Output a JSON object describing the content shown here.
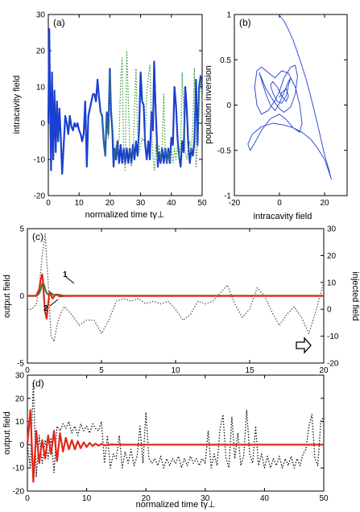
{
  "chart_data": [
    {
      "panel": "(a)",
      "type": "line",
      "xlabel": "normalized time tγ⊥",
      "ylabel": "intracavity field",
      "xlim": [
        0,
        50
      ],
      "ylim": [
        -20,
        30
      ],
      "xticks": [
        0,
        10,
        20,
        30,
        40,
        50
      ],
      "yticks": [
        -20,
        -10,
        0,
        10,
        20,
        30
      ],
      "series": [
        {
          "style": "solid",
          "color": "#1a3fd1",
          "x": [
            0,
            0.3,
            0.6,
            0.9,
            1.2,
            1.6,
            2.0,
            2.4,
            2.8,
            3.2,
            3.6,
            4.0,
            4.5,
            5.0,
            5.5,
            6.0,
            6.5,
            7.0,
            7.5,
            8.0,
            8.5,
            9.0,
            9.5,
            10.0,
            10.5,
            11.0,
            11.5,
            12.0,
            12.5,
            13.0,
            13.5,
            14.0,
            14.5,
            15.0,
            15.5,
            16.0,
            16.5,
            17.0,
            17.5,
            18.0,
            18.5,
            19.0,
            19.5,
            20.0,
            20.4,
            20.8,
            21.2,
            21.6,
            22.0,
            22.5,
            23.0,
            23.5,
            24.0,
            24.5,
            25.0,
            25.5,
            26.0,
            26.5,
            27.0,
            27.5,
            28.0,
            28.5,
            29.0,
            29.5,
            30.0,
            30.5,
            31.0,
            31.5,
            32.0,
            32.5,
            33.0,
            33.5,
            34.0,
            34.4,
            34.8,
            35.2,
            35.6,
            36.0,
            36.5,
            37.0,
            37.5,
            38.0,
            38.5,
            39.0,
            39.5,
            40.0,
            40.5,
            41.0,
            41.5,
            42.0,
            42.5,
            43.0,
            43.5,
            44.0,
            44.5,
            45.0,
            45.5,
            46.0,
            46.5,
            47.0,
            47.5,
            48.0,
            48.5,
            49.0,
            49.5,
            50.0
          ],
          "y": [
            0,
            26,
            5,
            -13,
            14,
            -10,
            9,
            -8,
            6,
            -5,
            4,
            -3,
            -14,
            -6,
            2,
            0,
            -3,
            2,
            -1,
            -2,
            0,
            -1,
            0,
            -2,
            -3,
            -5,
            -3,
            6,
            -12,
            2,
            4,
            6,
            8,
            8,
            6,
            12,
            7,
            3,
            2,
            -5,
            -9,
            3,
            -3,
            15,
            3,
            -2,
            -12,
            -7,
            -10,
            -5,
            -11,
            -6,
            -11,
            -7,
            -11,
            -7,
            -11,
            -7,
            -11,
            -6,
            -10,
            -5,
            -9,
            -2,
            14,
            6,
            5,
            -6,
            -10,
            -5,
            -10,
            3,
            -2,
            17,
            6,
            -3,
            -12,
            -8,
            -11,
            -7,
            -11,
            -7,
            -11,
            -7,
            -11,
            -4,
            -6,
            10,
            5,
            -4,
            -9,
            -12,
            -5,
            -8,
            10,
            4,
            -6,
            -11,
            -7,
            -9,
            -5,
            12,
            -6,
            10,
            13,
            10
          ]
        },
        {
          "style": "dotted",
          "color": "#3d9e3d",
          "x": [
            17.0,
            17.5,
            18.0,
            18.5,
            19.0,
            19.5,
            20.0,
            20.5,
            21.0,
            21.5,
            22.0,
            22.5,
            23.0,
            23.5,
            24.0,
            24.5,
            25.0,
            25.5,
            26.0,
            26.5,
            27.0,
            27.5,
            28.0,
            28.5,
            29.0,
            29.5,
            30.0,
            30.5,
            31.0,
            31.5,
            32.0,
            32.5,
            33.0,
            33.5,
            34.0,
            34.5,
            35.0,
            35.5,
            36.0,
            36.5,
            37.0,
            37.5,
            38.0,
            38.5,
            39.0,
            39.5,
            40.0,
            40.5,
            41.0,
            41.5,
            42.0,
            42.5,
            43.0,
            43.5,
            44.0,
            44.5,
            45.0,
            45.5,
            46.0,
            46.5,
            47.0,
            47.5,
            48.0,
            48.5,
            49.0,
            49.5,
            50.0
          ],
          "y": [
            3,
            1,
            -4,
            -9,
            2,
            -4,
            14,
            4,
            -2,
            -10,
            -6,
            -9,
            -4,
            11,
            18,
            -10,
            -13,
            20,
            7,
            -8,
            -12,
            -9,
            4,
            15,
            -2,
            -8,
            -6,
            -4,
            -5,
            -4,
            8,
            13,
            16,
            0,
            -9,
            -13,
            -6,
            -10,
            -6,
            -10,
            -6,
            8,
            -9,
            -11,
            -8,
            -10,
            -7,
            -11,
            -7,
            -10,
            -6,
            -10,
            -6,
            14,
            4,
            -8,
            -10,
            -7,
            -5,
            -8,
            0,
            15,
            -12,
            -6,
            8,
            12,
            6
          ]
        }
      ]
    },
    {
      "panel": "(b)",
      "type": "line",
      "xlabel": "intracavity  field",
      "ylabel": "population inversion",
      "xlim": [
        -20,
        30
      ],
      "ylim": [
        -1,
        1
      ],
      "xticks": [
        -20,
        0,
        20
      ],
      "yticks": [
        -1,
        -0.5,
        0,
        0.5,
        1
      ],
      "series": [
        {
          "style": "solid",
          "color": "#1a3fd1",
          "x": [
            0,
            2,
            4,
            6,
            8,
            10,
            12,
            14,
            16,
            18,
            20,
            22,
            23,
            22,
            20,
            17,
            14,
            10,
            6,
            2,
            -3,
            -8,
            -12,
            -14,
            -13,
            -11,
            -8,
            -4,
            0,
            3,
            6,
            9,
            10,
            9,
            7,
            4,
            1,
            -2,
            -5,
            -8,
            -10,
            -11,
            -10,
            -8,
            -5,
            -2,
            0,
            2,
            5,
            7,
            8,
            7,
            5,
            2,
            0,
            -3,
            -6,
            -8,
            -9,
            -8,
            -6,
            -4,
            -2,
            0,
            2,
            4,
            5,
            4,
            3,
            1,
            -1,
            -3,
            -4,
            -3,
            -1,
            1,
            3,
            4,
            3,
            1,
            0
          ],
          "y": [
            0.99,
            0.93,
            0.83,
            0.72,
            0.58,
            0.43,
            0.27,
            0.08,
            -0.12,
            -0.33,
            -0.55,
            -0.72,
            -0.82,
            -0.74,
            -0.6,
            -0.48,
            -0.38,
            -0.3,
            -0.25,
            -0.22,
            -0.2,
            -0.24,
            -0.32,
            -0.43,
            -0.5,
            -0.42,
            -0.28,
            -0.15,
            -0.1,
            -0.16,
            -0.25,
            -0.3,
            -0.2,
            0.0,
            0.2,
            0.35,
            0.38,
            0.3,
            0.36,
            0.42,
            0.38,
            0.2,
            0.0,
            -0.1,
            -0.06,
            0.05,
            0.15,
            0.3,
            0.42,
            0.44,
            0.32,
            0.12,
            -0.02,
            -0.08,
            -0.04,
            0.06,
            0.18,
            0.3,
            0.36,
            0.28,
            0.12,
            0.0,
            -0.06,
            0.02,
            0.14,
            0.26,
            0.3,
            0.22,
            0.1,
            0.02,
            0.04,
            0.14,
            0.22,
            0.26,
            0.2,
            0.1,
            0.04,
            0.1,
            0.18,
            0.14,
            0.08
          ]
        }
      ]
    },
    {
      "panel": "(c)",
      "type": "line",
      "xlabel": "",
      "ylabel": "output field",
      "ylabel_right": "injected field",
      "xlim": [
        0,
        20
      ],
      "ylim": [
        -5,
        5
      ],
      "ylim_right": [
        -20,
        30
      ],
      "xticks": [
        0,
        5,
        10,
        15,
        20
      ],
      "yticks": [
        -5,
        0,
        5
      ],
      "yticks_right": [
        -20,
        -10,
        0,
        10,
        20,
        30
      ],
      "annotations": [
        "1",
        "2"
      ],
      "series": [
        {
          "style": "dotted",
          "color": "#555555",
          "axis": "right",
          "x": [
            0,
            0.3,
            0.6,
            0.8,
            1.0,
            1.2,
            1.4,
            1.6,
            1.8,
            2.0,
            2.2,
            2.5,
            3.0,
            3.5,
            4.0,
            4.5,
            5.0,
            5.5,
            6.0,
            6.5,
            7.0,
            7.5,
            8.0,
            8.5,
            9.0,
            9.5,
            10.0,
            10.5,
            11.0,
            11.5,
            12.0,
            12.5,
            13.0,
            13.5,
            14.0,
            14.5,
            15.0,
            15.5,
            16.0,
            16.5,
            17.0,
            17.5,
            18.0,
            18.5,
            19.0,
            19.5,
            20.0
          ],
          "y": [
            0,
            0,
            2,
            8,
            20,
            28,
            10,
            -10,
            -12,
            -6,
            -2,
            1,
            -2,
            -6,
            -4,
            -4,
            -9,
            -4,
            3,
            4,
            3,
            4,
            2,
            3,
            2,
            3,
            0,
            -4,
            -2,
            3,
            2,
            3,
            6,
            9,
            2,
            -3,
            0,
            8,
            5,
            -1,
            -6,
            -2,
            1,
            -3,
            -9,
            0,
            10
          ]
        },
        {
          "style": "solid",
          "color": "#2e8b2e",
          "axis": "left",
          "x": [
            0,
            0.6,
            0.8,
            0.9,
            1.0,
            1.1,
            1.2,
            1.3,
            1.4,
            1.6,
            1.8,
            2.0,
            2.5,
            3.0,
            20.0
          ],
          "y": [
            0,
            0,
            0.2,
            0.5,
            0.9,
            0.9,
            0.5,
            0.2,
            0.1,
            0.2,
            0.05,
            0.1,
            0,
            0,
            0
          ]
        },
        {
          "style": "solid",
          "color": "#e0281c",
          "axis": "left",
          "x": [
            0,
            0.6,
            0.8,
            0.9,
            1.0,
            1.05,
            1.1,
            1.2,
            1.3,
            1.4,
            1.5,
            1.7,
            1.9,
            2.2,
            2.6,
            3.0,
            20.0
          ],
          "y": [
            0,
            0,
            0.5,
            1.2,
            1.6,
            1.2,
            0.2,
            -1.2,
            -1.7,
            -0.6,
            0.3,
            -0.2,
            0.1,
            -0.05,
            0,
            0,
            0
          ]
        }
      ]
    },
    {
      "panel": "(d)",
      "type": "line",
      "xlabel": "normalized time tγ⊥",
      "ylabel": "output field",
      "xlim": [
        0,
        50
      ],
      "ylim": [
        -20,
        30
      ],
      "xticks": [
        0,
        10,
        20,
        30,
        40,
        50
      ],
      "yticks": [
        -20,
        -10,
        0,
        10,
        20,
        30
      ],
      "series": [
        {
          "style": "dotted",
          "color": "#111111",
          "x": [
            0,
            0.5,
            1.0,
            1.5,
            2.0,
            2.5,
            3.0,
            3.5,
            4.0,
            4.5,
            5.0,
            5.5,
            6.0,
            6.5,
            7.0,
            7.5,
            8.0,
            8.5,
            9.0,
            9.5,
            10.0,
            10.5,
            11.0,
            11.5,
            12.0,
            12.5,
            13.0,
            13.5,
            14.0,
            14.5,
            15.0,
            15.5,
            16.0,
            16.5,
            17.0,
            17.5,
            18.0,
            18.5,
            19.0,
            19.5,
            20.0,
            20.5,
            21.0,
            21.5,
            22.0,
            22.5,
            23.0,
            23.5,
            24.0,
            24.5,
            25.0,
            25.5,
            26.0,
            26.5,
            27.0,
            27.5,
            28.0,
            28.5,
            29.0,
            29.5,
            30.0,
            30.5,
            31.0,
            31.5,
            32.0,
            32.5,
            33.0,
            33.5,
            34.0,
            34.5,
            35.0,
            35.5,
            36.0,
            36.5,
            37.0,
            37.5,
            38.0,
            38.5,
            39.0,
            39.5,
            40.0,
            40.5,
            41.0,
            41.5,
            42.0,
            42.5,
            43.0,
            43.5,
            44.0,
            44.5,
            45.0,
            45.5,
            46.0,
            46.5,
            47.0,
            47.5,
            48.0,
            48.5,
            49.0,
            49.5,
            50.0
          ],
          "y": [
            0,
            -10,
            27,
            -14,
            4,
            -8,
            2,
            -6,
            3,
            -12,
            8,
            6,
            9,
            7,
            10,
            5,
            8,
            4,
            9,
            6,
            8,
            5,
            9,
            7,
            6,
            10,
            -8,
            4,
            -10,
            -4,
            -6,
            4,
            -10,
            -3,
            -8,
            -2,
            -9,
            -5,
            8,
            -8,
            14,
            -6,
            -8,
            -6,
            -9,
            -5,
            -10,
            -6,
            -9,
            -6,
            -8,
            -5,
            -10,
            -6,
            -9,
            -5,
            -8,
            -6,
            -9,
            -6,
            -8,
            6,
            -10,
            -4,
            -9,
            7,
            13,
            -6,
            -10,
            12,
            -6,
            5,
            -9,
            -5,
            15,
            -4,
            -8,
            8,
            -9,
            -4,
            -10,
            -5,
            -10,
            -6,
            -9,
            -5,
            -10,
            -6,
            -9,
            -5,
            -10,
            -6,
            -9,
            -4,
            -2,
            8,
            13,
            -6,
            -9,
            10,
            12
          ]
        },
        {
          "style": "solid",
          "color": "#e0281c",
          "x": [
            0,
            0.5,
            1.0,
            1.5,
            2.0,
            2.5,
            3.0,
            3.5,
            4.0,
            4.5,
            5.0,
            5.5,
            6.0,
            6.5,
            7.0,
            7.5,
            8.0,
            8.5,
            9.0,
            9.5,
            10.0,
            10.5,
            11.0,
            11.5,
            12.0,
            12.5,
            13.0,
            14.0,
            16.0,
            20.0,
            30.0,
            40.0,
            50.0
          ],
          "y": [
            0,
            15,
            -16,
            6,
            -8,
            2,
            -6,
            4,
            -4,
            6,
            -7,
            5,
            -3,
            3,
            -2,
            2,
            -2,
            1.5,
            -1.5,
            1,
            -1,
            0.8,
            -0.6,
            0.5,
            -0.4,
            0.3,
            -0.2,
            0.1,
            0,
            0,
            0,
            0,
            0
          ]
        }
      ]
    }
  ]
}
